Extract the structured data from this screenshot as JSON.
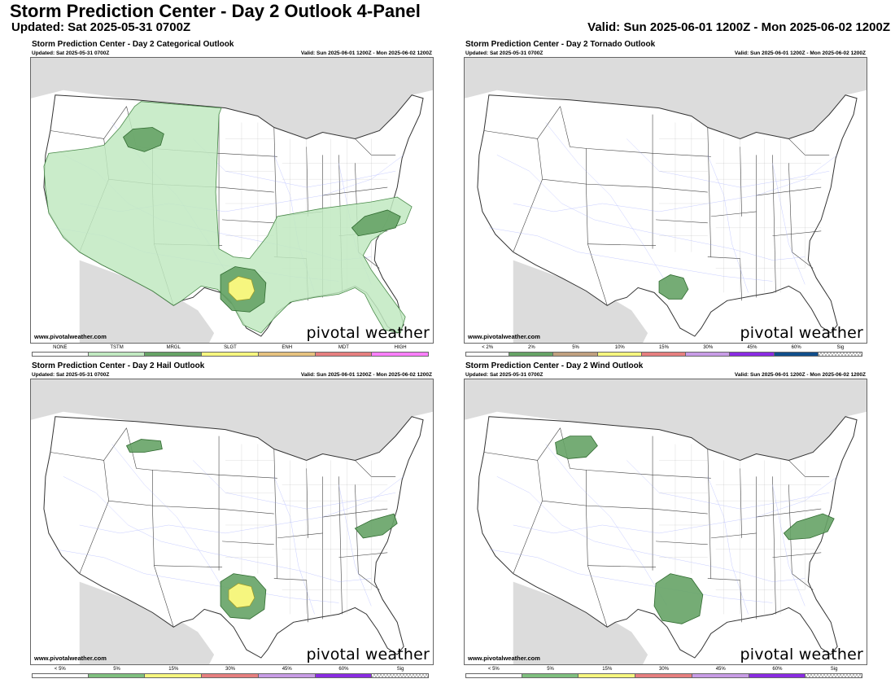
{
  "header": {
    "title": "Storm Prediction Center - Day 2 Outlook 4-Panel",
    "updated": "Updated: Sat 2025-05-31 0700Z",
    "valid": "Valid: Sun 2025-06-01 1200Z - Mon 2025-06-02 1200Z"
  },
  "panels": [
    {
      "title": "Storm Prediction Center - Day 2 Categorical Outlook",
      "updated": "Updated: Sat 2025-05-31 0700Z",
      "valid": "Valid: Sun 2025-06-01 1200Z - Mon 2025-06-02 1200Z",
      "credit": "www.pivotalweather.com",
      "brand": "pivotal weather",
      "legend": [
        {
          "label": "NONE",
          "color": "#ffffff"
        },
        {
          "label": "TSTM",
          "color": "#c1e9c1"
        },
        {
          "label": "MRGL",
          "color": "#66a366"
        },
        {
          "label": "SLGT",
          "color": "#f6f67f"
        },
        {
          "label": "ENH",
          "color": "#e6c27f"
        },
        {
          "label": "MDT",
          "color": "#e67f7f"
        },
        {
          "label": "HIGH",
          "color": "#ff7fff"
        }
      ]
    },
    {
      "title": "Storm Prediction Center - Day 2 Tornado Outlook",
      "updated": "Updated: Sat 2025-05-31 0700Z",
      "valid": "Valid: Sun 2025-06-01 1200Z - Mon 2025-06-02 1200Z",
      "credit": "www.pivotalweather.com",
      "brand": "pivotal weather",
      "legend": [
        {
          "label": "< 2%",
          "color": "#ffffff"
        },
        {
          "label": "2%",
          "color": "#66a366"
        },
        {
          "label": "5%",
          "color": "#c0a07f"
        },
        {
          "label": "10%",
          "color": "#f6f67f"
        },
        {
          "label": "15%",
          "color": "#e67f7f"
        },
        {
          "label": "30%",
          "color": "#c89ce6"
        },
        {
          "label": "45%",
          "color": "#8a2be2"
        },
        {
          "label": "60%",
          "color": "#104e8b"
        },
        {
          "label": "Sig",
          "color": "checker"
        }
      ]
    },
    {
      "title": "Storm Prediction Center - Day 2 Hail Outlook",
      "updated": "Updated: Sat 2025-05-31 0700Z",
      "valid": "Valid: Sun 2025-06-01 1200Z - Mon 2025-06-02 1200Z",
      "credit": "www.pivotalweather.com",
      "brand": "pivotal weather",
      "legend": [
        {
          "label": "< 5%",
          "color": "#ffffff"
        },
        {
          "label": "5%",
          "color": "#7fbf7f"
        },
        {
          "label": "15%",
          "color": "#f6f67f"
        },
        {
          "label": "30%",
          "color": "#e67f7f"
        },
        {
          "label": "45%",
          "color": "#c89ce6"
        },
        {
          "label": "60%",
          "color": "#8a2be2"
        },
        {
          "label": "Sig",
          "color": "checker"
        }
      ]
    },
    {
      "title": "Storm Prediction Center - Day 2 Wind Outlook",
      "updated": "Updated: Sat 2025-05-31 0700Z",
      "valid": "Valid: Sun 2025-06-01 1200Z - Mon 2025-06-02 1200Z",
      "credit": "www.pivotalweather.com",
      "brand": "pivotal weather",
      "legend": [
        {
          "label": "< 5%",
          "color": "#ffffff"
        },
        {
          "label": "5%",
          "color": "#7fbf7f"
        },
        {
          "label": "15%",
          "color": "#f6f67f"
        },
        {
          "label": "30%",
          "color": "#e67f7f"
        },
        {
          "label": "45%",
          "color": "#c89ce6"
        },
        {
          "label": "60%",
          "color": "#8a2be2"
        },
        {
          "label": "Sig",
          "color": "checker"
        }
      ]
    }
  ]
}
